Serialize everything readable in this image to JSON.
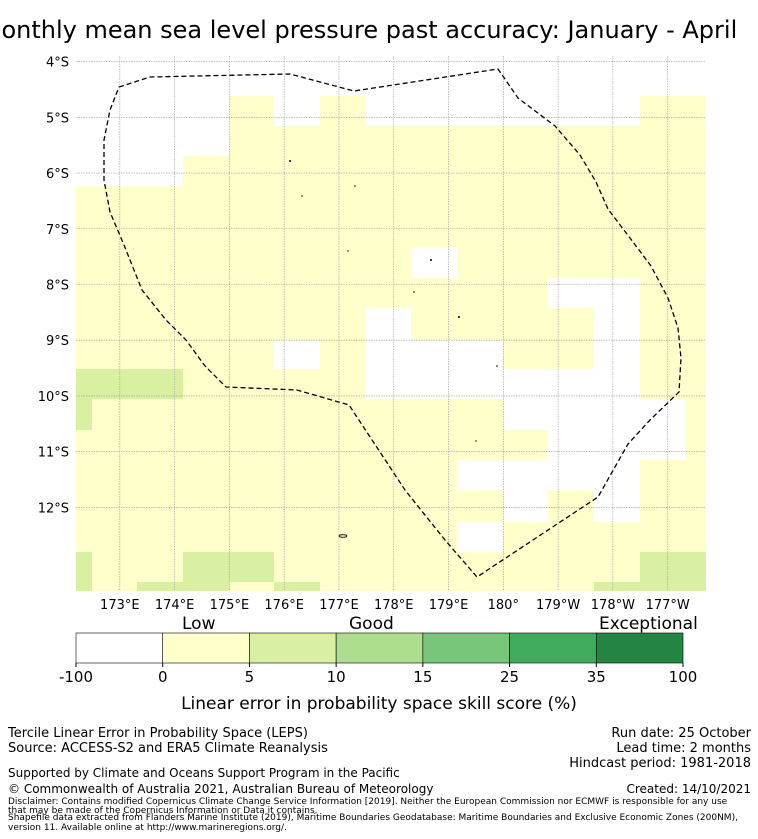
{
  "title": "Monthly mean sea level pressure past accuracy: January - April",
  "map": {
    "lat_ticks": [
      "4°S",
      "5°S",
      "6°S",
      "7°S",
      "8°S",
      "9°S",
      "10°S",
      "11°S",
      "12°S"
    ],
    "lon_ticks": [
      "173°E",
      "174°E",
      "175°E",
      "176°E",
      "177°E",
      "178°E",
      "179°E",
      "180°",
      "179°W",
      "178°W",
      "177°W"
    ],
    "lon_range_deg_east": [
      172.2,
      183.7
    ],
    "lat_range_deg": [
      -3.9,
      -13.5
    ],
    "colors": {
      "white": "#ffffff",
      "yellow": "#ffffcc",
      "lightgreen": "#d9f0a3",
      "grid": "#9a9a9a",
      "outline": "#000000"
    }
  },
  "colorbar": {
    "category_labels": [
      "Low",
      "Good",
      "Exceptional"
    ],
    "tick_labels": [
      "-100",
      "0",
      "5",
      "10",
      "15",
      "25",
      "35",
      "100"
    ],
    "colors": [
      "#ffffff",
      "#ffffcc",
      "#d9f0a3",
      "#addd8e",
      "#78c679",
      "#41ab5d",
      "#238443"
    ],
    "label": "Linear error in probability space skill score (%)"
  },
  "footer": {
    "left_line1": "Tercile Linear Error in Probability Space (LEPS)",
    "left_line2": "Source: ACCESS-S2 and ERA5 Climate Reanalysis",
    "support": "Supported by Climate and Oceans Support Program in the Pacific",
    "copyright": "© Commonwealth of Australia 2021, Australian Bureau of Meteorology",
    "run_date": "Run date: 25 October",
    "lead_time": "Lead time: 2 months",
    "hindcast": "Hindcast period: 1981-2018",
    "created": "Created: 14/10/2021",
    "disclaimer1": "Disclaimer: Contains modified Copernicus Climate Change Service Information [2019]. Neither the European Commission nor ECMWF is responsible for any use",
    "disclaimer2": "that may be made of the Copernicus Information or Data it contains.",
    "disclaimer3": "Shapefile data extracted from Flanders Marine Institute (2019), Maritime Boundaries Geodatabase: Maritime Boundaries and Exclusive Economic Zones (200NM),",
    "disclaimer4": "version 11. Available online at http://www.marineregions.org/."
  }
}
